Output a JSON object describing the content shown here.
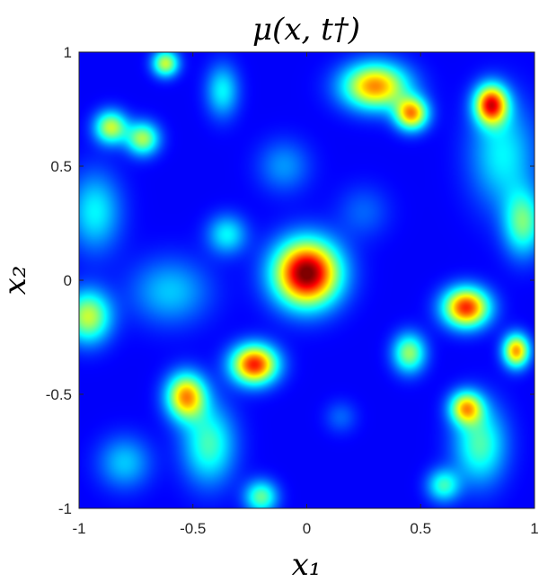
{
  "chart_data": {
    "type": "heatmap",
    "title": "μ(x, t†)",
    "xlabel": "x₁",
    "ylabel": "x₂",
    "xlim": [
      -1,
      1
    ],
    "ylim": [
      -1,
      1
    ],
    "xticks": [
      -1,
      -0.5,
      0,
      0.5,
      1
    ],
    "yticks": [
      -1,
      -0.5,
      0,
      0.5,
      1
    ],
    "xtick_labels": [
      "-1",
      "-0.5",
      "0",
      "0.5",
      "1"
    ],
    "ytick_labels": [
      "-1",
      "-0.5",
      "0",
      "0.5",
      "1"
    ],
    "colormap": "jet",
    "grid": false,
    "legend": "none",
    "background_value": 0.12,
    "blobs": [
      {
        "x": 0.0,
        "y": 0.03,
        "sx": 0.1,
        "sy": 0.1,
        "amp": 0.9
      },
      {
        "x": -0.23,
        "y": -0.37,
        "sx": 0.07,
        "sy": 0.06,
        "amp": 0.73
      },
      {
        "x": -0.53,
        "y": -0.51,
        "sx": 0.06,
        "sy": 0.07,
        "amp": 0.6
      },
      {
        "x": -0.43,
        "y": -0.72,
        "sx": 0.08,
        "sy": 0.12,
        "amp": 0.32
      },
      {
        "x": 0.3,
        "y": 0.85,
        "sx": 0.1,
        "sy": 0.07,
        "amp": 0.62
      },
      {
        "x": 0.46,
        "y": 0.73,
        "sx": 0.05,
        "sy": 0.05,
        "amp": 0.6
      },
      {
        "x": 0.81,
        "y": 0.77,
        "sx": 0.05,
        "sy": 0.06,
        "amp": 0.72
      },
      {
        "x": 0.86,
        "y": 0.55,
        "sx": 0.1,
        "sy": 0.16,
        "amp": 0.25
      },
      {
        "x": 0.7,
        "y": -0.12,
        "sx": 0.07,
        "sy": 0.06,
        "amp": 0.72
      },
      {
        "x": 0.92,
        "y": -0.31,
        "sx": 0.04,
        "sy": 0.05,
        "amp": 0.6
      },
      {
        "x": 0.7,
        "y": -0.56,
        "sx": 0.05,
        "sy": 0.05,
        "amp": 0.52
      },
      {
        "x": 0.76,
        "y": -0.72,
        "sx": 0.08,
        "sy": 0.12,
        "amp": 0.33
      },
      {
        "x": 0.45,
        "y": -0.32,
        "sx": 0.05,
        "sy": 0.06,
        "amp": 0.4
      },
      {
        "x": -0.86,
        "y": 0.67,
        "sx": 0.05,
        "sy": 0.05,
        "amp": 0.45
      },
      {
        "x": -0.72,
        "y": 0.62,
        "sx": 0.05,
        "sy": 0.05,
        "amp": 0.42
      },
      {
        "x": -0.62,
        "y": 0.95,
        "sx": 0.04,
        "sy": 0.04,
        "amp": 0.45
      },
      {
        "x": -0.37,
        "y": 0.83,
        "sx": 0.05,
        "sy": 0.08,
        "amp": 0.25
      },
      {
        "x": -0.96,
        "y": -0.16,
        "sx": 0.07,
        "sy": 0.08,
        "amp": 0.45
      },
      {
        "x": -0.93,
        "y": 0.3,
        "sx": 0.08,
        "sy": 0.12,
        "amp": 0.25
      },
      {
        "x": -0.6,
        "y": -0.05,
        "sx": 0.12,
        "sy": 0.1,
        "amp": 0.2
      },
      {
        "x": -0.35,
        "y": 0.2,
        "sx": 0.06,
        "sy": 0.06,
        "amp": 0.25
      },
      {
        "x": -0.8,
        "y": -0.8,
        "sx": 0.08,
        "sy": 0.08,
        "amp": 0.2
      },
      {
        "x": -0.2,
        "y": -0.95,
        "sx": 0.05,
        "sy": 0.05,
        "amp": 0.35
      },
      {
        "x": 0.6,
        "y": -0.9,
        "sx": 0.05,
        "sy": 0.05,
        "amp": 0.3
      },
      {
        "x": 0.95,
        "y": 0.25,
        "sx": 0.06,
        "sy": 0.1,
        "amp": 0.35
      },
      {
        "x": -0.1,
        "y": 0.5,
        "sx": 0.08,
        "sy": 0.08,
        "amp": 0.15
      },
      {
        "x": 0.25,
        "y": 0.3,
        "sx": 0.08,
        "sy": 0.08,
        "amp": 0.1
      },
      {
        "x": 0.15,
        "y": -0.6,
        "sx": 0.05,
        "sy": 0.05,
        "amp": 0.1
      }
    ]
  }
}
